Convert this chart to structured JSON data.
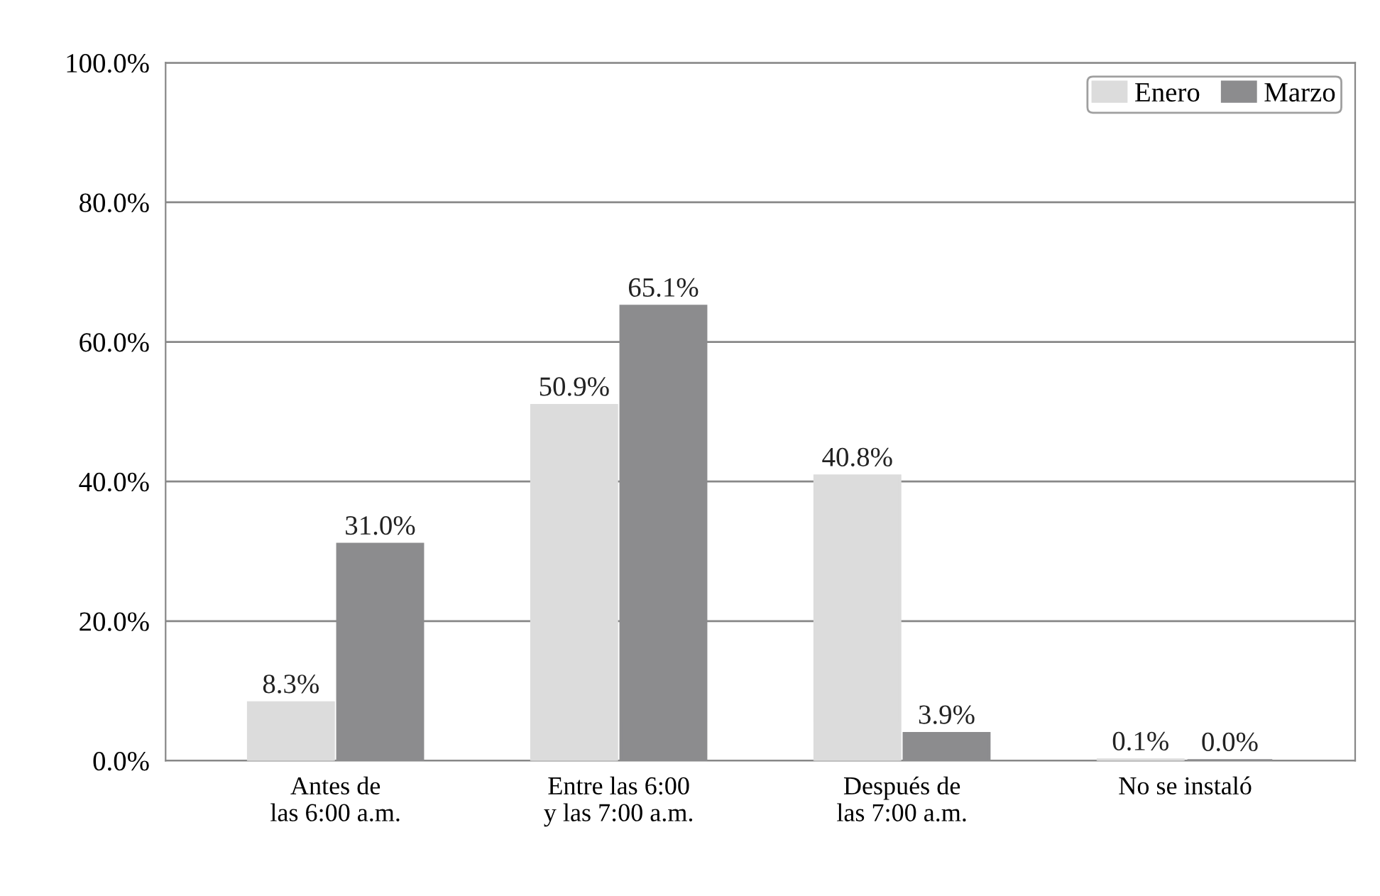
{
  "chart_data": {
    "type": "bar",
    "categories": [
      "Antes de\nlas 6:00 a.m.",
      "Entre las 6:00\ny las 7:00 a.m.",
      "Después de\nlas 7:00 a.m.",
      "No se instaló"
    ],
    "series": [
      {
        "name": "Enero",
        "color": "#dcdcdc",
        "values": [
          8.3,
          50.9,
          40.8,
          0.1
        ],
        "value_labels": [
          "8.3%",
          "50.9%",
          "40.8%",
          "0.1%"
        ]
      },
      {
        "name": "Marzo",
        "color": "#8c8c8e",
        "values": [
          31.0,
          65.1,
          3.9,
          0.0
        ],
        "value_labels": [
          "31.0%",
          "65.1%",
          "3.9%",
          "0.0%"
        ]
      }
    ],
    "ylim": [
      0,
      100
    ],
    "yticks": [
      {
        "value": 0,
        "label": "0.0%"
      },
      {
        "value": 20,
        "label": "20.0%"
      },
      {
        "value": 40,
        "label": "40.0%"
      },
      {
        "value": 60,
        "label": "60.0%"
      },
      {
        "value": 80,
        "label": "80.0%"
      },
      {
        "value": 100,
        "label": "100.0%"
      }
    ],
    "grid": "y",
    "legend": "top right"
  }
}
